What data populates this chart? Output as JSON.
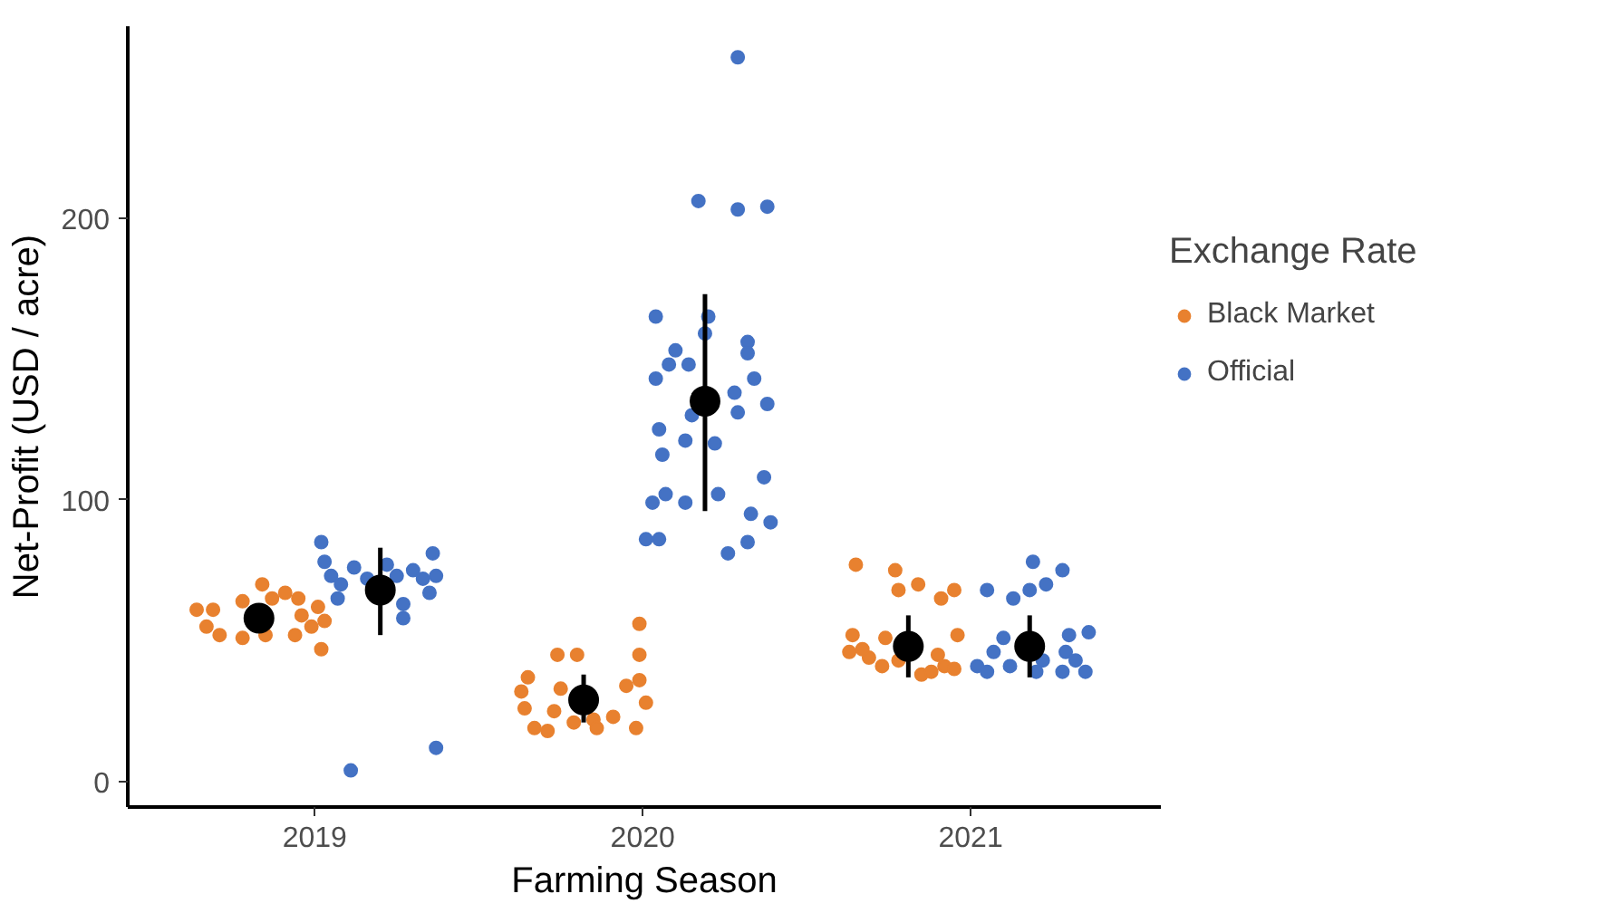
{
  "chart_data": {
    "type": "scatter",
    "xlabel": "Farming Season",
    "ylabel": "Net-Profit (USD / acre)",
    "legend_title": "Exchange Rate",
    "xlim": [
      2018.43,
      2021.58
    ],
    "xticks": [
      2019,
      2020,
      2021
    ],
    "ylim": [
      -9,
      268
    ],
    "yticks": [
      0,
      100,
      200
    ],
    "grid": false,
    "legend": "right",
    "marker": "circle",
    "series": [
      {
        "name": "Black Market",
        "color": "#e8812f",
        "x": [
          2018.64,
          2018.69,
          2018.78,
          2018.84,
          2018.87,
          2018.91,
          2018.95,
          2019.01,
          2019.03,
          2018.99,
          2018.67,
          2018.71,
          2018.78,
          2018.85,
          2018.94,
          2019.02,
          2018.96,
          2019.99,
          2019.99,
          2019.74,
          2019.8,
          2019.65,
          2019.63,
          2019.64,
          2019.67,
          2019.71,
          2019.75,
          2019.85,
          2019.91,
          2019.95,
          2019.99,
          2020.01,
          2019.98,
          2019.86,
          2019.79,
          2019.73,
          2020.65,
          2020.77,
          2020.78,
          2020.84,
          2020.95,
          2020.91,
          2020.64,
          2020.74,
          2020.96,
          2020.63,
          2020.69,
          2020.73,
          2020.82,
          2020.85,
          2020.9,
          2020.92,
          2020.88,
          2020.95,
          2020.78,
          2020.67
        ],
        "values": [
          61,
          61,
          64,
          70,
          65,
          67,
          65,
          62,
          57,
          55,
          55,
          52,
          51,
          52,
          52,
          47,
          59,
          56,
          45,
          45,
          45,
          37,
          32,
          26,
          19,
          18,
          33,
          22,
          23,
          34,
          36,
          28,
          19,
          19,
          21,
          25,
          77,
          75,
          68,
          70,
          68,
          65,
          52,
          51,
          52,
          46,
          44,
          41,
          null,
          38,
          45,
          41,
          39,
          40,
          43,
          47
        ]
      },
      {
        "name": "Official",
        "color": "#4472c4",
        "x": [
          2019.02,
          2019.03,
          2019.05,
          2019.08,
          2019.12,
          2019.16,
          2019.25,
          2019.3,
          2019.33,
          2019.36,
          2019.37,
          2019.35,
          2019.27,
          2019.27,
          2019.07,
          2019.22,
          2019.11,
          2019.37,
          2020.29,
          2020.17,
          2020.29,
          2020.38,
          2020.04,
          2020.2,
          2020.19,
          2020.1,
          2020.08,
          2020.14,
          2020.32,
          2020.32,
          2020.04,
          2020.34,
          2020.28,
          2020.38,
          2020.29,
          2020.15,
          2020.05,
          2020.13,
          2020.22,
          2020.06,
          2020.37,
          2020.07,
          2020.03,
          2020.13,
          2020.23,
          2020.33,
          2020.39,
          2020.01,
          2020.05,
          2020.32,
          2020.26,
          2021.19,
          2021.28,
          2021.23,
          2021.18,
          2021.05,
          2021.13,
          2021.1,
          2021.3,
          2021.36,
          2021.07,
          2021.02,
          2021.05,
          2021.12,
          2021.22,
          2021.29,
          2021.28,
          2021.35,
          2021.2,
          2021.32
        ],
        "values": [
          85,
          78,
          73,
          70,
          76,
          72,
          73,
          75,
          72,
          81,
          73,
          67,
          63,
          58,
          65,
          77,
          4,
          12,
          257,
          206,
          203,
          204,
          165,
          165,
          159,
          153,
          148,
          148,
          156,
          152,
          143,
          143,
          138,
          134,
          131,
          130,
          125,
          121,
          120,
          116,
          108,
          102,
          99,
          99,
          102,
          95,
          92,
          86,
          86,
          85,
          81,
          78,
          75,
          70,
          68,
          68,
          65,
          51,
          52,
          53,
          46,
          41,
          39,
          41,
          43,
          46,
          39,
          39,
          39,
          43
        ]
      },
      {
        "color": "#000000",
        "x": [
          2018.83,
          2019.2,
          2019.82,
          2020.19,
          2020.81,
          2021.18
        ],
        "values": [
          58,
          68,
          29,
          135,
          48,
          48
        ],
        "errors": [
          null,
          [
            52,
            83
          ],
          [
            21,
            38
          ],
          [
            96,
            173
          ],
          [
            37,
            59
          ],
          [
            37,
            59
          ]
        ]
      }
    ]
  }
}
